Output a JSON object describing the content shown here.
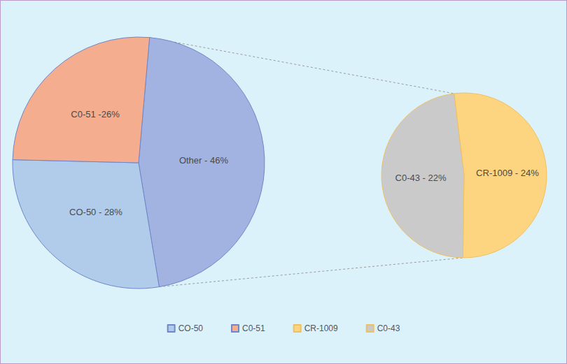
{
  "chart_data": [
    {
      "type": "pie",
      "categories": [
        null,
        "CO-50",
        "C0-51"
      ],
      "values": [
        46,
        28,
        26
      ],
      "value_labels": [
        "Other - 46%",
        "CO-50 - 28%",
        "C0-51 -26%"
      ],
      "colors": [
        "#a2b3e2",
        "#b1cbeb",
        "#f5ad8f"
      ],
      "data_labels": true,
      "legend": "bottom"
    },
    {
      "type": "pie",
      "categories": [
        "CR-1009",
        "C0-43"
      ],
      "values": [
        24,
        22
      ],
      "value_labels": [
        "CR-1009 - 24%",
        "C0-43 - 22%"
      ],
      "colors": [
        "#fdd47f",
        "#cacaca"
      ],
      "data_labels": true
    }
  ]
}
